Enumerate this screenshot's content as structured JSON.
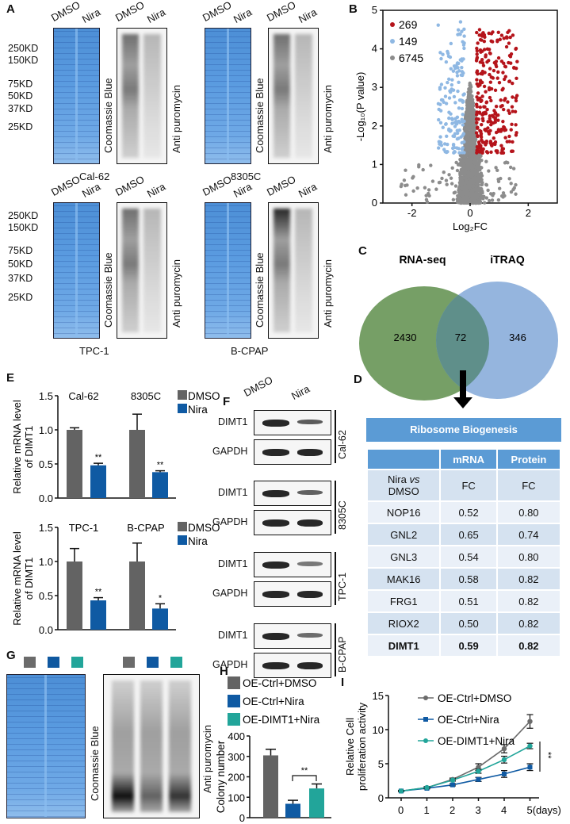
{
  "panels": {
    "A": "A",
    "B": "B",
    "C": "C",
    "D": "D",
    "E": "E",
    "F": "F",
    "G": "G",
    "H": "H",
    "I": "I"
  },
  "panel_a": {
    "lane_labels": [
      "DMSO",
      "Nira"
    ],
    "markers": [
      "250KD",
      "150KD",
      "75KD",
      "50KD",
      "37KD",
      "25KD"
    ],
    "stain_label": "Coomassie Blue",
    "blot_label": "Anti puromycin",
    "cell_lines": [
      "Cal-62",
      "8305C",
      "TPC-1",
      "B-CPAP"
    ]
  },
  "venn": {
    "sets": [
      "RNA-seq",
      "iTRAQ"
    ],
    "only_rna": "2430",
    "overlap": "72",
    "only_itraq": "346",
    "colors": {
      "rna": "#6f9a5e",
      "itraq": "#8fb1dc",
      "overlap": "#5f8f8a"
    }
  },
  "table_d": {
    "title": "Ribosome Biogenesis",
    "headers": [
      "",
      "mRNA",
      "Protein"
    ],
    "subheader": {
      "label_1": "Nira ",
      "label_vs": "vs",
      "label_2": "DMSO",
      "mrna": "FC",
      "protein": "FC"
    },
    "rows": [
      {
        "gene": "NOP16",
        "mrna": "0.52",
        "protein": "0.80"
      },
      {
        "gene": "GNL2",
        "mrna": "0.65",
        "protein": "0.74"
      },
      {
        "gene": "GNL3",
        "mrna": "0.54",
        "protein": "0.80"
      },
      {
        "gene": "MAK16",
        "mrna": "0.58",
        "protein": "0.82"
      },
      {
        "gene": "FRG1",
        "mrna": "0.51",
        "protein": "0.82"
      },
      {
        "gene": "RIOX2",
        "mrna": "0.50",
        "protein": "0.82"
      },
      {
        "gene": "DIMT1",
        "mrna": "0.59",
        "protein": "0.82"
      }
    ]
  },
  "panel_f": {
    "lane_labels": [
      "DMSO",
      "Nira"
    ],
    "proteins": [
      "DIMT1",
      "GAPDH"
    ],
    "cell_lines": [
      "Cal-62",
      "8305C",
      "TPC-1",
      "B-CPAP"
    ]
  },
  "panel_g": {
    "stain_label": "Coomassie Blue",
    "blot_label": "Anti puromycin",
    "group_colors": [
      "#6b6b6b",
      "#0f58a0",
      "#22a59a"
    ]
  },
  "chart_data": [
    {
      "id": "B",
      "type": "scatter",
      "title": "",
      "xlabel": "Log2FC",
      "ylabel": "-Log10(P value)",
      "xlim": [
        -3,
        3
      ],
      "ylim": [
        0,
        5
      ],
      "xticks": [
        "-2",
        "0",
        "2"
      ],
      "yticks": [
        "0",
        "1",
        "2",
        "3",
        "4",
        "5"
      ],
      "legend_position": "top-left",
      "series": [
        {
          "name": "269",
          "color": "#b5141b",
          "count": 269
        },
        {
          "name": "149",
          "color": "#8fb8e3",
          "count": 149
        },
        {
          "name": "6745",
          "color": "#8c8c8c",
          "count": 6745
        }
      ]
    },
    {
      "id": "E-top",
      "type": "bar",
      "ylabel": "Relative mRNA level of DIMT1",
      "ylim": [
        0,
        1.5
      ],
      "yticks": [
        "0.0",
        "0.5",
        "1.0",
        "1.5"
      ],
      "categories": [
        "Cal-62",
        "8305C"
      ],
      "legend_position": "top-right",
      "series": [
        {
          "name": "DMSO",
          "color": "#636363",
          "values": [
            1.0,
            1.0
          ],
          "errors": [
            0.03,
            0.23
          ]
        },
        {
          "name": "Nira",
          "color": "#0f5aa3",
          "values": [
            0.48,
            0.38
          ],
          "errors": [
            0.03,
            0.02
          ],
          "significance": [
            "**",
            "**"
          ]
        }
      ]
    },
    {
      "id": "E-bottom",
      "type": "bar",
      "ylabel": "Relative mRNA level of DIMT1",
      "ylim": [
        0,
        1.5
      ],
      "yticks": [
        "0.0",
        "0.5",
        "1.0",
        "1.5"
      ],
      "categories": [
        "TPC-1",
        "B-CPAP"
      ],
      "legend_position": "top-right",
      "series": [
        {
          "name": "DMSO",
          "color": "#636363",
          "values": [
            1.0,
            1.0
          ],
          "errors": [
            0.19,
            0.27
          ]
        },
        {
          "name": "Nira",
          "color": "#0f5aa3",
          "values": [
            0.43,
            0.31
          ],
          "errors": [
            0.04,
            0.07
          ],
          "significance": [
            "**",
            "*"
          ]
        }
      ]
    },
    {
      "id": "H",
      "type": "bar",
      "ylabel": "Colony number",
      "ylim": [
        0,
        400
      ],
      "yticks": [
        "0",
        "100",
        "200",
        "300",
        "400"
      ],
      "categories": [
        "OE-Ctrl+DMSO",
        "OE-Ctrl+Nira",
        "OE-DIMT1+Nira"
      ],
      "values": [
        305,
        68,
        143
      ],
      "errors": [
        30,
        17,
        22
      ],
      "colors": [
        "#636363",
        "#0f5aa3",
        "#22a59a"
      ],
      "annotation": "**",
      "legend_position": "top"
    },
    {
      "id": "I",
      "type": "line",
      "ylabel": "Relative Cell proliferation activity",
      "xlabel_suffix": "(days)",
      "x": [
        0,
        1,
        2,
        3,
        4,
        5
      ],
      "xticks": [
        "0",
        "1",
        "2",
        "3",
        "4",
        "5(days)"
      ],
      "ylim": [
        0,
        15
      ],
      "yticks": [
        "0",
        "5",
        "10",
        "15"
      ],
      "legend_position": "top-left",
      "annotation": "**",
      "series": [
        {
          "name": "OE-Ctrl+DMSO",
          "color": "#6b6b6b",
          "marker": "circle",
          "values": [
            1.0,
            1.5,
            2.7,
            4.5,
            7.2,
            11.2
          ],
          "errors": [
            0.1,
            0.15,
            0.2,
            0.5,
            0.6,
            1.0
          ]
        },
        {
          "name": "OE-Ctrl+Nira",
          "color": "#0f5aa3",
          "marker": "square",
          "values": [
            1.0,
            1.4,
            1.9,
            2.7,
            3.5,
            4.5
          ],
          "errors": [
            0.1,
            0.1,
            0.15,
            0.3,
            0.5,
            0.5
          ]
        },
        {
          "name": "OE-DIMT1+Nira",
          "color": "#22a59a",
          "marker": "circle",
          "values": [
            1.0,
            1.5,
            2.6,
            3.9,
            5.6,
            7.6
          ],
          "errors": [
            0.1,
            0.1,
            0.15,
            0.3,
            0.5,
            0.4
          ]
        }
      ]
    }
  ]
}
